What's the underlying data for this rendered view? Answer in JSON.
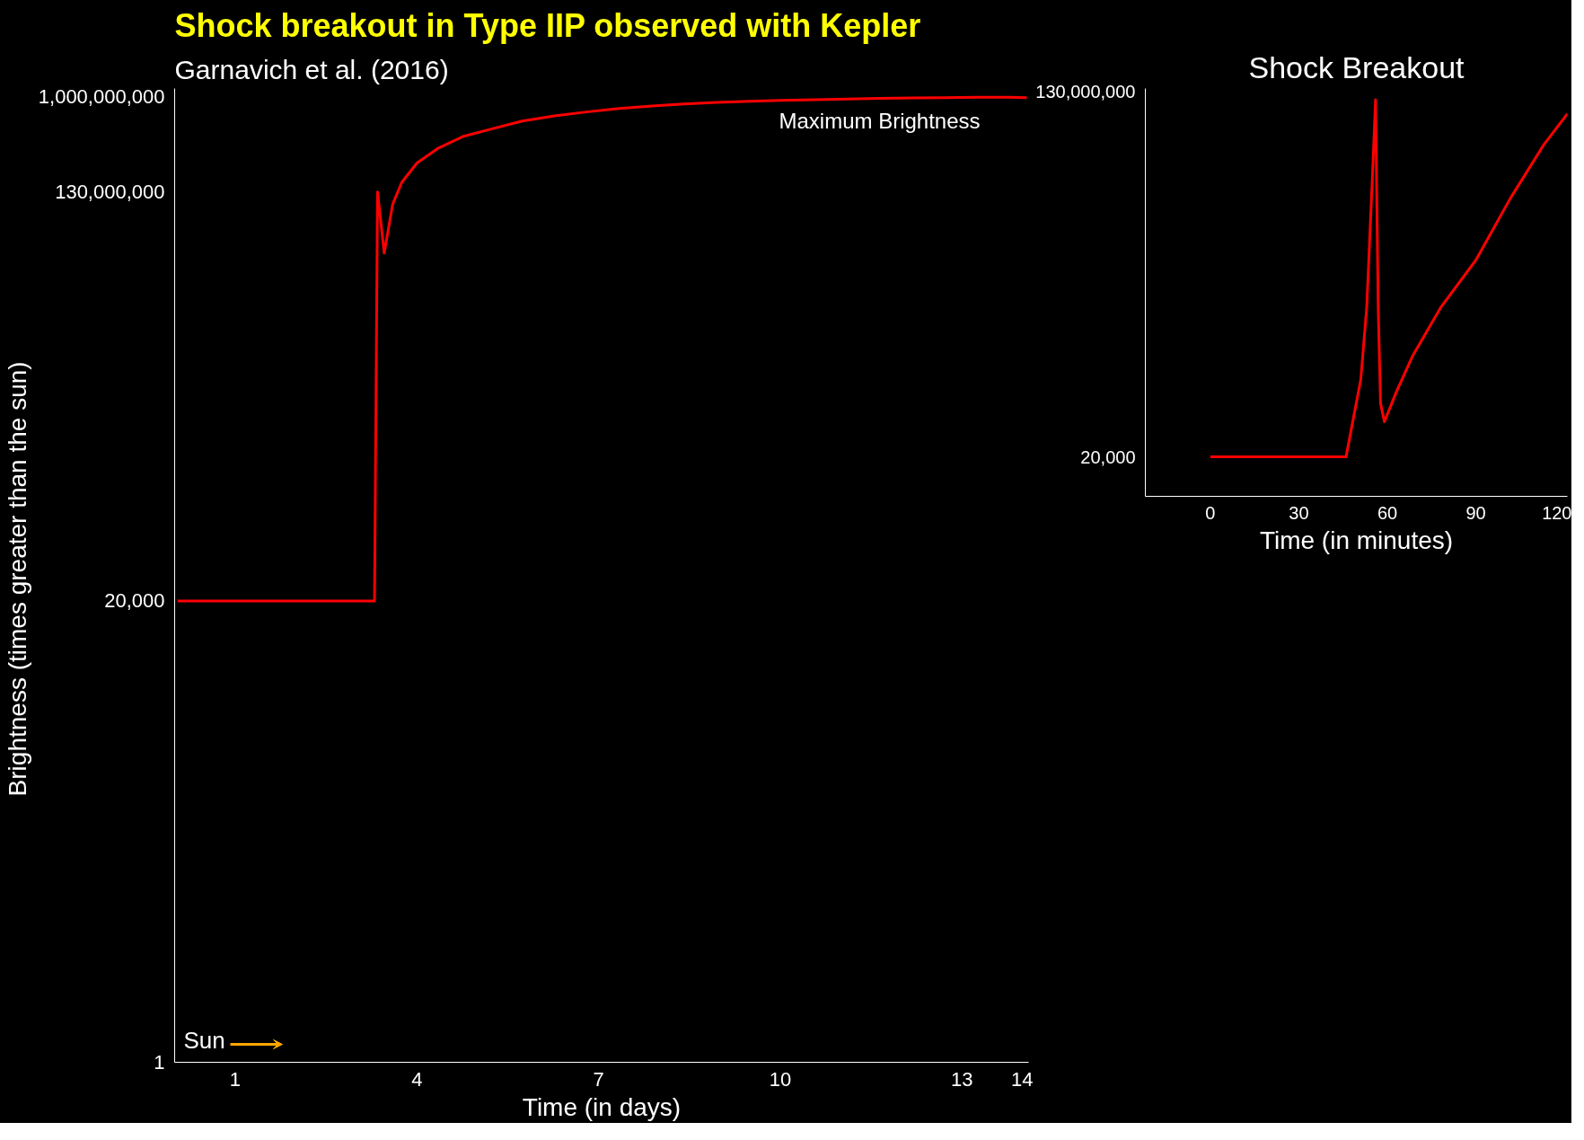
{
  "chart_data": [
    {
      "type": "line",
      "title": "Shock breakout in Type IIP observed with Kepler",
      "subtitle": "Garnavich et al. (2016)",
      "xlabel": "Time (in days)",
      "ylabel": "Brightness  (times greater than the sun)",
      "log": true,
      "grid": false,
      "xlim": [
        0,
        14.1
      ],
      "xticks": [
        1,
        4,
        7,
        10,
        13,
        14
      ],
      "ylim": [
        1,
        1200000000
      ],
      "yticks": [
        {
          "value": 1,
          "label": "1"
        },
        {
          "value": 20000,
          "label": "20,000"
        },
        {
          "value": 130000000,
          "label": "130,000,000"
        },
        {
          "value": 1000000000,
          "label": "1,000,000,000"
        }
      ],
      "annotations": [
        {
          "text": "Maximum Brightness",
          "x": 13.3,
          "y": 1000000000
        },
        "Sun"
      ],
      "series": [
        {
          "color": "#ff0000",
          "x": [
            0.05,
            0.5,
            1.0,
            1.5,
            2.0,
            2.5,
            3.0,
            3.3,
            3.35,
            3.46,
            3.6,
            3.75,
            4.0,
            4.34,
            4.77,
            5.2,
            5.74,
            6.27,
            6.8,
            7.34,
            7.88,
            8.4,
            8.95,
            9.49,
            10.0,
            10.56,
            11.1,
            11.63,
            12.2,
            12.7,
            13.24,
            13.8,
            14.07
          ],
          "values": [
            20000,
            20000,
            20000,
            20000,
            20000,
            20000,
            20000,
            20000,
            130000000,
            35000000,
            100000000,
            160000000,
            242000000,
            330000000,
            430000000,
            498000000,
            597000000,
            666000000,
            725000000,
            780000000,
            824000000,
            859000000,
            888000000,
            913000000,
            928000000,
            945000000,
            957000000,
            970000000,
            980000000,
            987000000,
            992000000,
            994000000,
            987000000
          ]
        }
      ]
    },
    {
      "type": "line",
      "title": "Shock Breakout",
      "xlabel": "Time (in minutes)",
      "grid": false,
      "xlim": [
        -22,
        121
      ],
      "xticks": [
        0,
        30,
        60,
        90,
        120
      ],
      "ylim": [
        -14000000,
        131000000
      ],
      "yticks": [
        {
          "value": 20000,
          "label": "20,000"
        },
        {
          "value": 130000000,
          "label": "130,000,000"
        }
      ],
      "series": [
        {
          "color": "#ff0000",
          "x": [
            0,
            10,
            20,
            30,
            40,
            46,
            51,
            53,
            55,
            56,
            56.9,
            57.7,
            59,
            63,
            68.6,
            78,
            90,
            101.7,
            113,
            121
          ],
          "values": [
            20000,
            20000,
            20000,
            20000,
            20000,
            20000,
            27600000,
            53000000,
            101000000,
            127000000,
            53000000,
            19000000,
            12500000,
            23000000,
            36000000,
            53000000,
            70000000,
            92000000,
            111000000,
            122000000
          ]
        }
      ]
    }
  ]
}
